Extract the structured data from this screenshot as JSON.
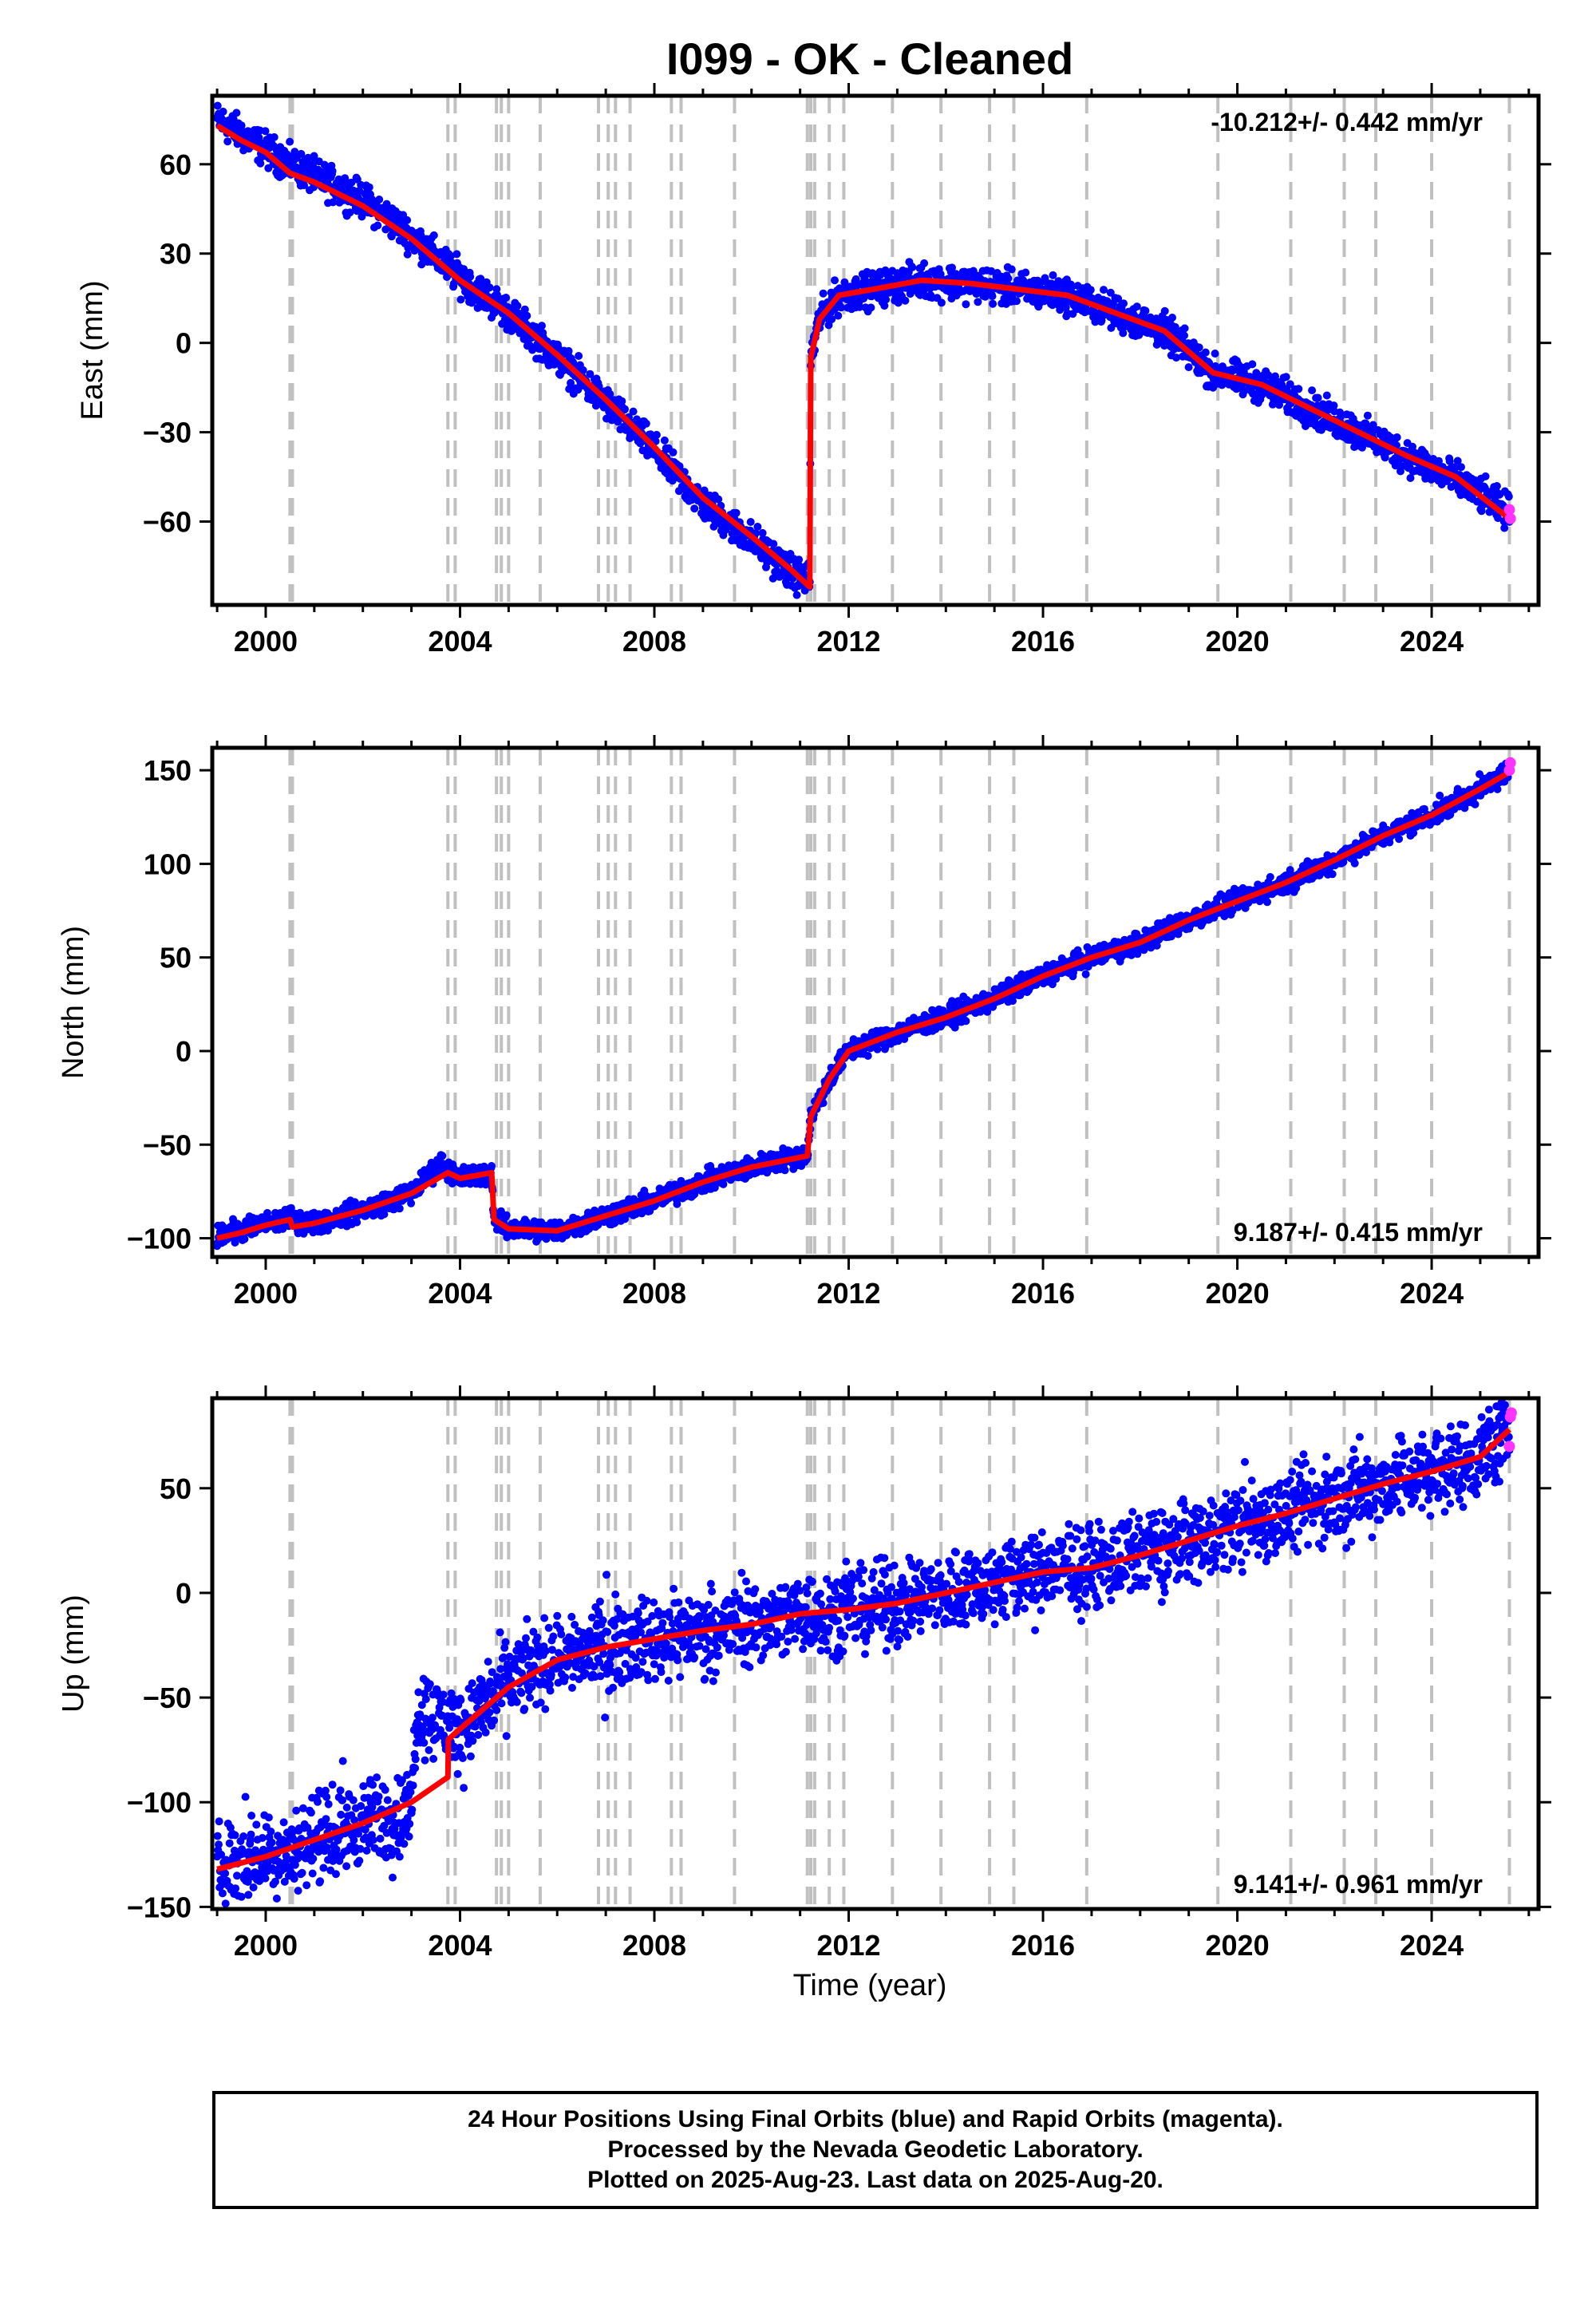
{
  "chart_data": {
    "type": "scatter",
    "title": "I099  - OK - Cleaned",
    "xlabel": "Time (year)",
    "xlim": [
      1998.9,
      2026.2
    ],
    "x_ticks": [
      "2000",
      "2004",
      "2008",
      "2012",
      "2016",
      "2020",
      "2024"
    ],
    "x_tick_values": [
      2000,
      2004,
      2008,
      2012,
      2016,
      2020,
      2024
    ],
    "vertical_event_lines": [
      2000.5,
      2000.55,
      2003.75,
      2003.9,
      2004.75,
      2004.85,
      2005.0,
      2005.65,
      2006.85,
      2007.05,
      2007.2,
      2007.5,
      2008.35,
      2008.55,
      2009.65,
      2011.15,
      2011.22,
      2011.3,
      2011.6,
      2011.9,
      2012.9,
      2013.9,
      2014.9,
      2015.4,
      2016.9,
      2019.6,
      2021.1,
      2022.2,
      2022.85,
      2024.0,
      2025.6
    ],
    "panels": [
      {
        "ylabel": "East (mm)",
        "ylim": [
          -88,
          83
        ],
        "y_ticks": [
          "60",
          "30",
          "0",
          "−30",
          "−60"
        ],
        "y_tick_values": [
          60,
          30,
          0,
          -30,
          -60
        ],
        "rate_label": "-10.212+/- 0.442 mm/yr",
        "rate_position": "top-right",
        "final_series": {
          "name": "Final Orbits",
          "color": "#0000ff",
          "x": [
            1999.0,
            1999.5,
            2000.0,
            2000.5,
            2001.0,
            2002.0,
            2003.0,
            2004.0,
            2005.0,
            2006.0,
            2007.0,
            2008.0,
            2009.0,
            2010.0,
            2010.8,
            2011.2,
            2011.22,
            2011.4,
            2011.8,
            2012.5,
            2013.5,
            2014.5,
            2015.5,
            2016.5,
            2017.5,
            2018.5,
            2019.5,
            2020.5,
            2021.5,
            2022.5,
            2023.5,
            2024.5,
            2025.6
          ],
          "y": [
            75,
            70,
            65,
            60,
            56,
            48,
            36,
            22,
            10,
            -5,
            -20,
            -36,
            -54,
            -66,
            -77,
            -80,
            -5,
            8,
            16,
            18,
            21,
            20,
            18,
            16,
            10,
            4,
            -10,
            -14,
            -22,
            -30,
            -38,
            -46,
            -57
          ]
        },
        "trend": {
          "name": "Model",
          "color": "#ff0000",
          "x": [
            1999.0,
            1999.5,
            2000.0,
            2000.5,
            2001.0,
            2002.0,
            2003.0,
            2004.0,
            2005.0,
            2006.0,
            2007.0,
            2008.0,
            2009.0,
            2010.0,
            2010.8,
            2011.2,
            2011.22,
            2011.4,
            2011.8,
            2012.5,
            2013.5,
            2014.5,
            2015.5,
            2016.5,
            2017.5,
            2018.5,
            2019.5,
            2020.5,
            2021.5,
            2022.5,
            2023.5,
            2024.5,
            2025.6
          ],
          "y": [
            73,
            68,
            64,
            57,
            54,
            46,
            35,
            21,
            10,
            -4,
            -19,
            -35,
            -52,
            -65,
            -76,
            -82,
            -5,
            8,
            16,
            18,
            21,
            20,
            18,
            16,
            10,
            4,
            -10,
            -14,
            -22,
            -30,
            -38,
            -45,
            -59
          ]
        },
        "rapid_series": {
          "name": "Rapid Orbits",
          "color": "#ff33ff",
          "x": [
            2025.6,
            2025.62
          ],
          "y": [
            -56,
            -59
          ]
        }
      },
      {
        "ylabel": "North (mm)",
        "ylim": [
          -110,
          162
        ],
        "y_ticks": [
          "150",
          "100",
          "50",
          "0",
          "−50",
          "−100"
        ],
        "y_tick_values": [
          150,
          100,
          50,
          0,
          -50,
          -100
        ],
        "rate_label": "9.187+/- 0.415 mm/yr",
        "rate_position": "bottom-right",
        "final_series": {
          "name": "Final Orbits",
          "color": "#0000ff",
          "x": [
            1999.0,
            1999.5,
            2000.0,
            2000.5,
            2001.0,
            2002.0,
            2003.0,
            2003.6,
            2004.0,
            2004.65,
            2004.7,
            2005.0,
            2006.0,
            2007.0,
            2008.0,
            2009.0,
            2010.0,
            2011.15,
            2011.22,
            2011.6,
            2012.0,
            2013.0,
            2014.0,
            2015.0,
            2016.0,
            2017.0,
            2018.0,
            2019.0,
            2020.0,
            2021.0,
            2022.0,
            2023.0,
            2024.0,
            2025.0,
            2025.6
          ],
          "y": [
            -98,
            -96,
            -92,
            -90,
            -92,
            -85,
            -76,
            -60,
            -68,
            -65,
            -90,
            -95,
            -96,
            -88,
            -80,
            -70,
            -62,
            -55,
            -35,
            -15,
            0,
            10,
            18,
            28,
            40,
            50,
            58,
            70,
            80,
            90,
            102,
            115,
            126,
            140,
            150
          ]
        },
        "trend": {
          "name": "Model",
          "color": "#ff0000",
          "x": [
            1999.0,
            1999.5,
            2000.0,
            2000.5,
            2000.55,
            2001.0,
            2002.0,
            2003.0,
            2003.75,
            2004.0,
            2004.65,
            2004.7,
            2005.0,
            2006.0,
            2007.0,
            2008.0,
            2009.0,
            2010.0,
            2011.15,
            2011.22,
            2011.6,
            2012.0,
            2013.0,
            2014.0,
            2015.0,
            2016.0,
            2017.0,
            2018.0,
            2019.0,
            2020.0,
            2021.0,
            2022.0,
            2023.0,
            2024.0,
            2025.0,
            2025.6
          ],
          "y": [
            -100,
            -97,
            -93,
            -90,
            -94,
            -92,
            -85,
            -76,
            -65,
            -68,
            -65,
            -90,
            -95,
            -96,
            -88,
            -80,
            -70,
            -62,
            -56,
            -35,
            -15,
            0,
            10,
            18,
            28,
            40,
            50,
            58,
            70,
            80,
            90,
            102,
            115,
            126,
            140,
            149
          ]
        },
        "rapid_series": {
          "name": "Rapid Orbits",
          "color": "#ff33ff",
          "x": [
            2025.6,
            2025.62
          ],
          "y": [
            150,
            154
          ]
        }
      },
      {
        "ylabel": "Up (mm)",
        "ylim": [
          -151,
          93
        ],
        "y_ticks": [
          "50",
          "0",
          "−50",
          "−100",
          "−150"
        ],
        "y_tick_values": [
          50,
          0,
          -50,
          -100,
          -150
        ],
        "rate_label": "9.141+/- 0.961 mm/yr",
        "rate_position": "bottom-right",
        "final_series": {
          "name": "Final Orbits",
          "color": "#0000ff",
          "x": [
            1999.0,
            2000.0,
            2001.0,
            2002.0,
            2003.0,
            2003.1,
            2004.0,
            2005.0,
            2006.0,
            2007.0,
            2008.0,
            2009.0,
            2010.0,
            2011.0,
            2012.0,
            2013.0,
            2014.0,
            2015.0,
            2016.0,
            2017.0,
            2018.0,
            2019.0,
            2020.0,
            2021.0,
            2022.0,
            2023.0,
            2024.0,
            2025.0,
            2025.6
          ],
          "y": [
            -130,
            -125,
            -118,
            -110,
            -105,
            -55,
            -65,
            -42,
            -30,
            -25,
            -22,
            -18,
            -15,
            -10,
            -8,
            -5,
            0,
            5,
            10,
            12,
            18,
            25,
            32,
            38,
            45,
            52,
            58,
            65,
            78
          ]
        },
        "trend": {
          "name": "Model",
          "color": "#ff0000",
          "x": [
            1999.0,
            2000.0,
            2001.0,
            2002.0,
            2003.0,
            2003.75,
            2003.76,
            2004.0,
            2005.0,
            2006.0,
            2007.0,
            2008.0,
            2009.0,
            2010.0,
            2011.0,
            2012.0,
            2013.0,
            2014.0,
            2015.0,
            2016.0,
            2017.0,
            2018.0,
            2019.0,
            2020.0,
            2021.0,
            2022.0,
            2023.0,
            2024.0,
            2025.0,
            2025.6
          ],
          "y": [
            -132,
            -126,
            -118,
            -110,
            -100,
            -88,
            -70,
            -65,
            -45,
            -32,
            -26,
            -22,
            -18,
            -15,
            -10,
            -8,
            -5,
            0,
            5,
            10,
            12,
            18,
            25,
            32,
            38,
            45,
            52,
            58,
            65,
            78
          ]
        },
        "rapid_series": {
          "name": "Rapid Orbits",
          "color": "#ff33ff",
          "x": [
            2025.6,
            2025.62,
            2025.64
          ],
          "y": [
            70,
            84,
            86
          ]
        }
      }
    ]
  },
  "caption": {
    "line1": "24 Hour Positions Using Final Orbits (blue) and Rapid Orbits (magenta).",
    "line2": "Processed by the Nevada Geodetic Laboratory.",
    "line3": "Plotted on 2025-Aug-23. Last data on 2025-Aug-20."
  }
}
